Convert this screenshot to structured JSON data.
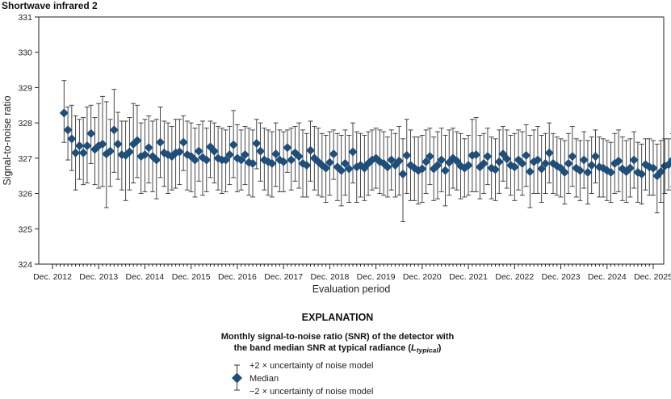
{
  "chart_data": {
    "type": "scatter",
    "title": "Shortwave infrared 2",
    "xlabel": "Evaluation period",
    "ylabel": "Signal-to-noise ratio",
    "ylim": [
      324,
      331
    ],
    "yticks": [
      "324",
      "325",
      "326",
      "327",
      "328",
      "329",
      "330",
      "331"
    ],
    "xlim": [
      "2012-12",
      "2025-12"
    ],
    "xticks": [
      "Dec. 2012",
      "Dec. 2013",
      "Dec. 2014",
      "Dec. 2015",
      "Dec. 2016",
      "Dec. 2017",
      "Dec. 2018",
      "Dec. 2019",
      "Dec. 2020",
      "Dec. 2021",
      "Dec. 2022",
      "Dec. 2023",
      "Dec. 2024",
      "Dec. 2025"
    ],
    "grid": false,
    "series": [
      {
        "name": "Median",
        "x_start": "2013-03",
        "x_end": "2025-11",
        "marker": "diamond",
        "color": "#1f4e79",
        "values": [
          328.28,
          327.8,
          327.55,
          327.15,
          327.35,
          327.15,
          327.35,
          327.7,
          327.25,
          327.35,
          327.4,
          327.12,
          327.2,
          327.8,
          327.4,
          327.1,
          327.08,
          327.18,
          327.4,
          327.5,
          327.05,
          327.1,
          327.3,
          327.05,
          326.95,
          327.45,
          327.15,
          327.1,
          327.05,
          327.15,
          327.18,
          327.45,
          327.1,
          327.05,
          326.95,
          327.2,
          327.02,
          326.95,
          327.32,
          327.2,
          327.0,
          326.95,
          326.95,
          327.1,
          327.38,
          327.0,
          326.95,
          327.1,
          326.88,
          326.85,
          327.42,
          327.2,
          326.95,
          326.9,
          326.85,
          327.12,
          326.95,
          326.9,
          327.3,
          326.95,
          327.15,
          327.05,
          326.85,
          326.8,
          327.22,
          327.0,
          326.9,
          326.8,
          326.72,
          326.88,
          327.12,
          326.75,
          326.65,
          326.85,
          326.7,
          327.18,
          326.75,
          326.8,
          326.72,
          326.85,
          326.95,
          327.0,
          326.9,
          326.85,
          326.75,
          326.95,
          326.8,
          326.92,
          326.55,
          327.08,
          326.8,
          326.72,
          326.65,
          326.7,
          326.9,
          327.05,
          326.7,
          326.8,
          326.95,
          326.65,
          326.88,
          327.0,
          326.92,
          326.78,
          326.72,
          326.8,
          327.08,
          327.1,
          326.75,
          326.85,
          327.05,
          326.72,
          326.68,
          326.9,
          327.12,
          326.98,
          326.8,
          326.75,
          326.95,
          326.85,
          327.08,
          326.62,
          326.9,
          326.95,
          326.7,
          326.85,
          327.15,
          326.85,
          326.78,
          326.72,
          326.6,
          326.85,
          327.05,
          326.72,
          326.65,
          326.95,
          326.6,
          326.8,
          327.05,
          326.75,
          326.72,
          326.65,
          326.6,
          326.85,
          326.92,
          326.7,
          326.62,
          326.72,
          326.95,
          326.6,
          326.55,
          326.82,
          326.75,
          326.72,
          326.5,
          326.62,
          326.78,
          326.82,
          326.95,
          326.68,
          326.72
        ]
      },
      {
        "name": "+2 × uncertainty of noise model",
        "marker": "cap",
        "values": [
          329.2,
          328.45,
          328.5,
          328.2,
          328.1,
          328.15,
          328.45,
          328.5,
          328.15,
          328.55,
          328.75,
          328.6,
          328.1,
          328.95,
          328.3,
          328.05,
          328.05,
          328.15,
          328.55,
          328.5,
          328.0,
          328.1,
          328.2,
          328.05,
          328.1,
          328.45,
          328.05,
          328.0,
          327.9,
          328.1,
          328.1,
          328.2,
          328.05,
          328.0,
          327.85,
          327.95,
          328.05,
          327.85,
          328.05,
          328.0,
          327.9,
          327.85,
          327.8,
          327.9,
          328.35,
          327.95,
          327.8,
          327.9,
          327.85,
          327.8,
          328.1,
          328.0,
          327.85,
          327.8,
          327.75,
          328.0,
          327.8,
          327.75,
          327.8,
          327.85,
          327.9,
          328.0,
          327.8,
          327.7,
          328.05,
          327.9,
          327.85,
          327.7,
          327.65,
          327.75,
          327.8,
          327.7,
          327.65,
          327.8,
          327.65,
          328.0,
          327.75,
          327.7,
          327.65,
          327.75,
          327.8,
          327.85,
          327.8,
          327.75,
          327.6,
          327.8,
          327.7,
          327.9,
          327.55,
          328.1,
          327.8,
          327.6,
          327.6,
          327.65,
          327.8,
          327.85,
          327.6,
          327.75,
          327.85,
          327.65,
          327.8,
          327.85,
          327.75,
          327.7,
          327.55,
          327.65,
          328.1,
          328.15,
          327.65,
          327.7,
          327.85,
          327.6,
          327.55,
          327.8,
          327.9,
          327.8,
          327.65,
          327.7,
          327.8,
          327.75,
          327.95,
          327.65,
          327.8,
          327.9,
          327.65,
          327.7,
          328.0,
          327.7,
          327.6,
          327.55,
          327.5,
          327.7,
          327.9,
          327.55,
          327.5,
          327.75,
          327.5,
          327.6,
          327.8,
          327.6,
          327.55,
          327.5,
          327.45,
          327.7,
          327.8,
          327.6,
          327.5,
          327.55,
          327.75,
          327.45,
          327.4,
          327.55,
          327.55,
          327.5,
          327.4,
          327.5,
          327.55,
          327.55,
          327.7,
          327.4,
          327.3
        ]
      },
      {
        "name": "−2 × uncertainty of noise model",
        "marker": "cap",
        "values": [
          327.45,
          326.95,
          326.65,
          326.1,
          326.4,
          326.25,
          326.3,
          326.85,
          326.25,
          326.15,
          326.2,
          325.6,
          326.2,
          326.6,
          326.4,
          326.1,
          325.8,
          326.1,
          326.3,
          326.45,
          326.0,
          326.05,
          326.3,
          326.05,
          325.85,
          326.45,
          326.2,
          326.0,
          326.1,
          326.15,
          326.25,
          326.65,
          326.1,
          326.05,
          325.9,
          326.35,
          325.95,
          326.05,
          326.45,
          326.3,
          326.1,
          326.0,
          326.05,
          326.25,
          326.45,
          326.05,
          326.1,
          326.25,
          325.95,
          325.9,
          326.7,
          326.35,
          326.1,
          325.95,
          325.9,
          326.2,
          326.05,
          326.05,
          326.6,
          326.1,
          326.35,
          326.15,
          325.9,
          325.9,
          326.35,
          326.1,
          325.95,
          325.9,
          325.75,
          325.95,
          326.4,
          325.8,
          325.65,
          325.95,
          325.75,
          326.3,
          325.75,
          325.9,
          325.8,
          325.95,
          326.1,
          326.15,
          326.0,
          325.95,
          325.9,
          326.1,
          325.9,
          325.95,
          325.2,
          326.0,
          325.8,
          325.8,
          325.7,
          325.75,
          326.0,
          326.25,
          325.8,
          325.85,
          326.05,
          325.65,
          325.95,
          326.15,
          326.1,
          325.85,
          325.9,
          325.95,
          326.05,
          326.05,
          325.85,
          326.0,
          326.25,
          325.85,
          325.8,
          326.0,
          326.35,
          326.15,
          325.95,
          325.8,
          326.1,
          325.95,
          326.2,
          325.6,
          326.0,
          326.0,
          325.75,
          326.0,
          326.3,
          326.0,
          325.95,
          325.9,
          325.7,
          326.0,
          326.2,
          325.9,
          325.8,
          326.15,
          325.7,
          326.0,
          326.3,
          325.9,
          325.9,
          325.8,
          325.75,
          326.0,
          326.05,
          325.8,
          325.75,
          325.9,
          326.15,
          325.75,
          325.7,
          326.1,
          325.95,
          325.95,
          325.45,
          325.75,
          326.0,
          326.1,
          326.2,
          325.95,
          326.15
        ]
      }
    ]
  },
  "legend": {
    "heading": "EXPLANATION",
    "caption_line1": "Monthly signal-to-noise ratio (SNR) of the detector with",
    "caption_line2_prefix": "the band median SNR at typical radiance (",
    "caption_symbol": "L",
    "caption_subscript": "typical",
    "caption_line2_suffix": ")",
    "upper_label": "+2 × uncertainty of noise model",
    "median_label": "Median",
    "lower_label": "−2 × uncertainty of noise model"
  },
  "colors": {
    "marker": "#1f4e79",
    "errorbar": "#333333",
    "axis": "#222222"
  }
}
